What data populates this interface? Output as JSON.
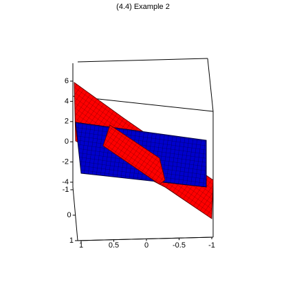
{
  "chart_data": {
    "type": "surface3d",
    "title": "(4.4) Example 2",
    "xlim": [
      1,
      -1
    ],
    "xticks": [
      1,
      0.5,
      0,
      -0.5,
      -1
    ],
    "ylim": [
      -1,
      1
    ],
    "yticks": [
      -1,
      0,
      1
    ],
    "zlim": [
      -4,
      6
    ],
    "zticks": [
      6,
      4,
      2,
      0,
      -2,
      -4
    ]
  }
}
